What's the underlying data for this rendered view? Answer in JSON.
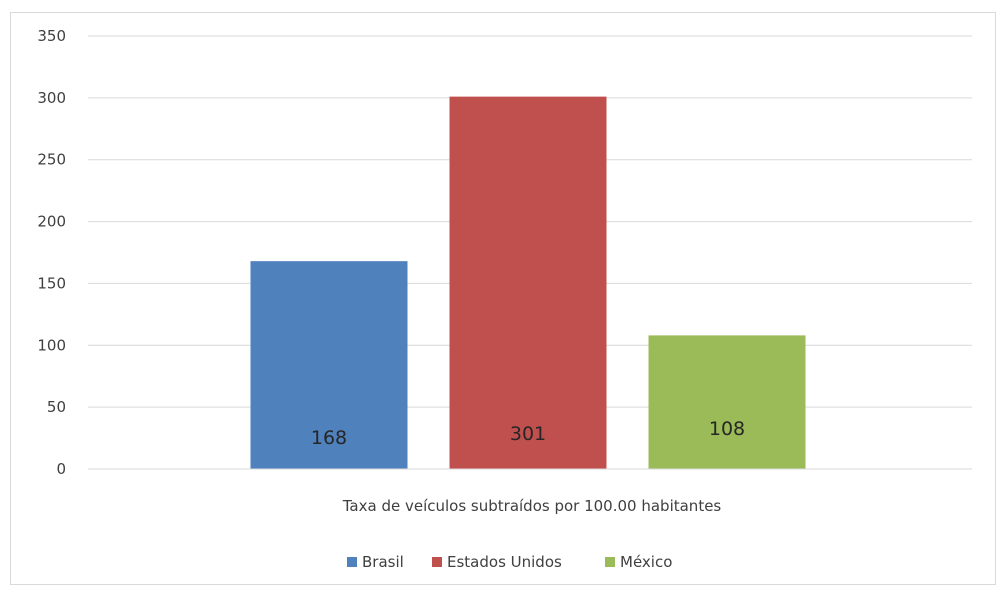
{
  "chart_data": {
    "type": "bar",
    "title": "",
    "xlabel": "Taxa de veículos subtraídos por 100.00 habitantes",
    "ylabel": "",
    "ylim": [
      0,
      350
    ],
    "yticks": [
      "0",
      "50",
      "100",
      "150",
      "200",
      "250",
      "300",
      "350"
    ],
    "categories": [
      "Taxa de veículos subtraídos por 100.00 habitantes"
    ],
    "series": [
      {
        "name": "Brasil",
        "values": [
          168
        ],
        "color": "#4f81bd",
        "label": "168"
      },
      {
        "name": "Estados Unidos",
        "values": [
          301
        ],
        "color": "#c0504d",
        "label": "301"
      },
      {
        "name": "México",
        "values": [
          108
        ],
        "color": "#9bbb59",
        "label": "108"
      }
    ],
    "grid": true,
    "legend": "bottom"
  }
}
